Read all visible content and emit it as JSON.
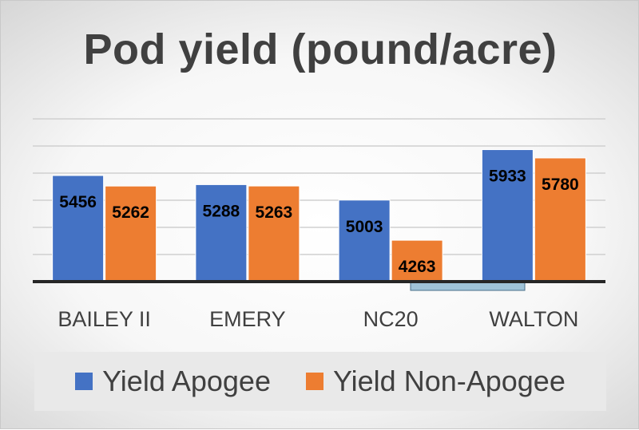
{
  "chart_data": {
    "type": "bar",
    "title": "Pod yield (pound/acre)",
    "categories": [
      "BAILEY II",
      "EMERY",
      "NC20",
      "WALTON"
    ],
    "series": [
      {
        "name": "Yield Apogee",
        "values": [
          5456,
          5288,
          5003,
          5933
        ],
        "color": "#4472C4"
      },
      {
        "name": "Yield Non-Apogee",
        "values": [
          5262,
          5263,
          4263,
          5780
        ],
        "color": "#ED7D31"
      }
    ],
    "xlabel": "",
    "ylabel": "",
    "ylim": [
      3500,
      6500
    ],
    "grid": true,
    "legend": "bottom"
  }
}
